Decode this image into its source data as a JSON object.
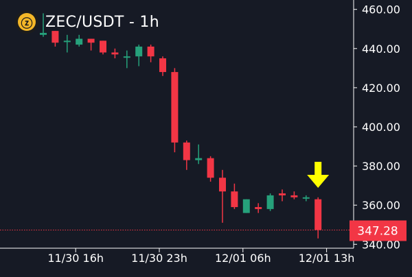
{
  "header": {
    "coin_icon": "zcash-icon",
    "coin_glyph": "ⓩ",
    "title": "ZEC/USDT - 1h"
  },
  "colors": {
    "background": "#161a25",
    "up": "#26a17b",
    "down": "#f23645",
    "axis_text": "#ffffff",
    "price_tag_bg": "#f23645",
    "arrow": "#ffff00"
  },
  "chart_data": {
    "type": "candlestick",
    "title": "ZEC/USDT - 1h",
    "y_tick_labels": [
      "460.00",
      "440.00",
      "420.00",
      "400.00",
      "380.00",
      "360.00",
      "340.00"
    ],
    "y_ticks": [
      460,
      440,
      420,
      400,
      380,
      360,
      340
    ],
    "ylim": [
      338,
      462
    ],
    "x_tick_labels": [
      "11/30 16h",
      "11/30 23h",
      "12/01 06h",
      "12/01 13h"
    ],
    "x_tick_index": [
      3,
      10,
      17,
      24
    ],
    "grid": false,
    "last_price": 347.28,
    "last_price_label": "347.28",
    "annotation": "down-arrow-icon above last candle",
    "candles": [
      {
        "o": 447,
        "h": 458,
        "l": 446,
        "c": 448
      },
      {
        "o": 449,
        "h": 449,
        "l": 441,
        "c": 443
      },
      {
        "o": 444,
        "h": 447,
        "l": 438,
        "c": 444
      },
      {
        "o": 442,
        "h": 447,
        "l": 441,
        "c": 445
      },
      {
        "o": 445,
        "h": 445,
        "l": 439,
        "c": 443
      },
      {
        "o": 444,
        "h": 444,
        "l": 437,
        "c": 438
      },
      {
        "o": 438,
        "h": 440,
        "l": 435,
        "c": 437
      },
      {
        "o": 436,
        "h": 439,
        "l": 430,
        "c": 436
      },
      {
        "o": 436,
        "h": 442,
        "l": 431,
        "c": 441
      },
      {
        "o": 441,
        "h": 442,
        "l": 433,
        "c": 436
      },
      {
        "o": 435,
        "h": 436,
        "l": 426,
        "c": 428
      },
      {
        "o": 428,
        "h": 430,
        "l": 387,
        "c": 392
      },
      {
        "o": 392,
        "h": 393,
        "l": 378,
        "c": 383
      },
      {
        "o": 383,
        "h": 391,
        "l": 381,
        "c": 384
      },
      {
        "o": 384,
        "h": 385,
        "l": 372,
        "c": 374
      },
      {
        "o": 374,
        "h": 378,
        "l": 351,
        "c": 367
      },
      {
        "o": 367,
        "h": 371,
        "l": 358,
        "c": 359
      },
      {
        "o": 356,
        "h": 363,
        "l": 356,
        "c": 363
      },
      {
        "o": 359,
        "h": 361,
        "l": 356,
        "c": 358
      },
      {
        "o": 358,
        "h": 366,
        "l": 357,
        "c": 365
      },
      {
        "o": 366,
        "h": 368,
        "l": 362,
        "c": 365
      },
      {
        "o": 365,
        "h": 367,
        "l": 363,
        "c": 364
      },
      {
        "o": 364,
        "h": 365,
        "l": 362,
        "c": 364
      },
      {
        "o": 363,
        "h": 364,
        "l": 343,
        "c": 347.28
      }
    ]
  }
}
